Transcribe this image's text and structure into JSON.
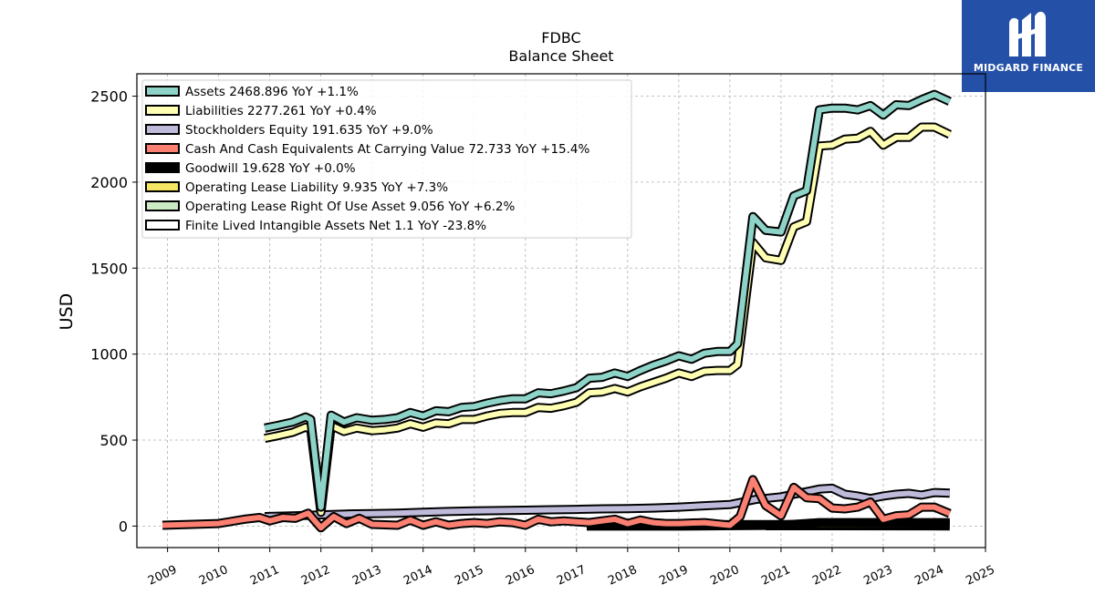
{
  "title": {
    "line1": "FDBC",
    "line2": "Balance  Sheet"
  },
  "logo": {
    "text": "MIDGARD FINANCE",
    "icon": "midgard-logo-icon",
    "color": "#2450a8"
  },
  "chart_data": {
    "type": "line",
    "ylabel": "USD",
    "xlim": [
      2008.4,
      2025.0
    ],
    "ylim": [
      -125,
      2630
    ],
    "yticks": [
      0,
      500,
      1000,
      1500,
      2000,
      2500
    ],
    "xticks": [
      2009,
      2010,
      2011,
      2012,
      2013,
      2014,
      2015,
      2016,
      2017,
      2018,
      2019,
      2020,
      2021,
      2022,
      2023,
      2024,
      2025
    ],
    "grid": true,
    "legend_placement": "top-left",
    "series": [
      {
        "name": "Assets",
        "legend": "Assets  2468.896 YoY +1.1%",
        "color": "#8dd3c7",
        "points": [
          [
            2010.9,
            570
          ],
          [
            2011.15,
            585
          ],
          [
            2011.45,
            605
          ],
          [
            2011.7,
            635
          ],
          [
            2011.8,
            620
          ],
          [
            2012.0,
            110
          ],
          [
            2012.2,
            645
          ],
          [
            2012.45,
            605
          ],
          [
            2012.7,
            630
          ],
          [
            2013.0,
            615
          ],
          [
            2013.25,
            620
          ],
          [
            2013.5,
            630
          ],
          [
            2013.75,
            660
          ],
          [
            2014.0,
            640
          ],
          [
            2014.25,
            670
          ],
          [
            2014.5,
            665
          ],
          [
            2014.75,
            690
          ],
          [
            2015.0,
            695
          ],
          [
            2015.25,
            715
          ],
          [
            2015.5,
            730
          ],
          [
            2015.75,
            740
          ],
          [
            2016.0,
            740
          ],
          [
            2016.25,
            775
          ],
          [
            2016.5,
            770
          ],
          [
            2016.75,
            785
          ],
          [
            2017.0,
            805
          ],
          [
            2017.25,
            860
          ],
          [
            2017.5,
            865
          ],
          [
            2017.75,
            890
          ],
          [
            2018.0,
            870
          ],
          [
            2018.25,
            905
          ],
          [
            2018.5,
            935
          ],
          [
            2018.75,
            960
          ],
          [
            2019.0,
            990
          ],
          [
            2019.25,
            970
          ],
          [
            2019.5,
            1005
          ],
          [
            2019.75,
            1015
          ],
          [
            2020.0,
            1015
          ],
          [
            2020.15,
            1060
          ],
          [
            2020.45,
            1800
          ],
          [
            2020.7,
            1720
          ],
          [
            2021.0,
            1710
          ],
          [
            2021.25,
            1920
          ],
          [
            2021.5,
            1950
          ],
          [
            2021.75,
            2420
          ],
          [
            2022.0,
            2430
          ],
          [
            2022.25,
            2430
          ],
          [
            2022.5,
            2420
          ],
          [
            2022.75,
            2445
          ],
          [
            2023.0,
            2390
          ],
          [
            2023.25,
            2450
          ],
          [
            2023.5,
            2445
          ],
          [
            2023.75,
            2480
          ],
          [
            2024.0,
            2510
          ],
          [
            2024.3,
            2469
          ]
        ]
      },
      {
        "name": "Liabilities",
        "legend": "Liabilities  2277.261 YoY +0.4%",
        "color": "#ffffb3",
        "points": [
          [
            2010.9,
            510
          ],
          [
            2011.15,
            525
          ],
          [
            2011.45,
            545
          ],
          [
            2011.7,
            575
          ],
          [
            2011.8,
            565
          ],
          [
            2012.0,
            80
          ],
          [
            2012.2,
            585
          ],
          [
            2012.45,
            550
          ],
          [
            2012.7,
            570
          ],
          [
            2013.0,
            555
          ],
          [
            2013.25,
            560
          ],
          [
            2013.5,
            570
          ],
          [
            2013.75,
            595
          ],
          [
            2014.0,
            575
          ],
          [
            2014.25,
            600
          ],
          [
            2014.5,
            595
          ],
          [
            2014.75,
            620
          ],
          [
            2015.0,
            620
          ],
          [
            2015.25,
            640
          ],
          [
            2015.5,
            655
          ],
          [
            2015.75,
            660
          ],
          [
            2016.0,
            660
          ],
          [
            2016.25,
            690
          ],
          [
            2016.5,
            685
          ],
          [
            2016.75,
            700
          ],
          [
            2017.0,
            720
          ],
          [
            2017.25,
            775
          ],
          [
            2017.5,
            780
          ],
          [
            2017.75,
            800
          ],
          [
            2018.0,
            780
          ],
          [
            2018.25,
            810
          ],
          [
            2018.5,
            835
          ],
          [
            2018.75,
            860
          ],
          [
            2019.0,
            890
          ],
          [
            2019.25,
            870
          ],
          [
            2019.5,
            900
          ],
          [
            2019.75,
            905
          ],
          [
            2020.0,
            905
          ],
          [
            2020.15,
            940
          ],
          [
            2020.45,
            1650
          ],
          [
            2020.7,
            1560
          ],
          [
            2021.0,
            1545
          ],
          [
            2021.25,
            1740
          ],
          [
            2021.5,
            1770
          ],
          [
            2021.75,
            2210
          ],
          [
            2022.0,
            2215
          ],
          [
            2022.25,
            2250
          ],
          [
            2022.5,
            2255
          ],
          [
            2022.75,
            2295
          ],
          [
            2023.0,
            2215
          ],
          [
            2023.25,
            2260
          ],
          [
            2023.5,
            2260
          ],
          [
            2023.75,
            2320
          ],
          [
            2024.0,
            2320
          ],
          [
            2024.3,
            2277
          ]
        ]
      },
      {
        "name": "Stockholders Equity",
        "legend": "Stockholders Equity  191.635 YoY +9.0%",
        "color": "#bebada",
        "points": [
          [
            2010.9,
            55
          ],
          [
            2011.5,
            60
          ],
          [
            2012.0,
            65
          ],
          [
            2012.5,
            70
          ],
          [
            2013.0,
            72
          ],
          [
            2013.5,
            75
          ],
          [
            2014.0,
            80
          ],
          [
            2014.5,
            85
          ],
          [
            2015.0,
            88
          ],
          [
            2015.5,
            90
          ],
          [
            2016.0,
            92
          ],
          [
            2016.5,
            95
          ],
          [
            2017.0,
            97
          ],
          [
            2017.5,
            100
          ],
          [
            2018.0,
            102
          ],
          [
            2018.5,
            105
          ],
          [
            2019.0,
            110
          ],
          [
            2019.5,
            118
          ],
          [
            2020.0,
            125
          ],
          [
            2020.5,
            155
          ],
          [
            2021.0,
            170
          ],
          [
            2021.5,
            200
          ],
          [
            2021.75,
            215
          ],
          [
            2022.0,
            220
          ],
          [
            2022.25,
            185
          ],
          [
            2022.5,
            175
          ],
          [
            2022.75,
            160
          ],
          [
            2023.0,
            175
          ],
          [
            2023.25,
            185
          ],
          [
            2023.5,
            190
          ],
          [
            2023.75,
            180
          ],
          [
            2024.0,
            195
          ],
          [
            2024.3,
            192
          ]
        ]
      },
      {
        "name": "Cash And Cash Equivalents At Carrying Value",
        "legend": "Cash And Cash Equivalents At Carrying Value  72.733 YoY +15.4%",
        "color": "#fb8072",
        "points": [
          [
            2008.9,
            5
          ],
          [
            2009.5,
            10
          ],
          [
            2010.0,
            15
          ],
          [
            2010.5,
            40
          ],
          [
            2010.8,
            50
          ],
          [
            2011.0,
            30
          ],
          [
            2011.25,
            50
          ],
          [
            2011.5,
            45
          ],
          [
            2011.75,
            75
          ],
          [
            2012.0,
            -10
          ],
          [
            2012.25,
            55
          ],
          [
            2012.5,
            15
          ],
          [
            2012.75,
            45
          ],
          [
            2013.0,
            10
          ],
          [
            2013.5,
            5
          ],
          [
            2013.75,
            35
          ],
          [
            2014.0,
            5
          ],
          [
            2014.25,
            25
          ],
          [
            2014.5,
            5
          ],
          [
            2014.75,
            15
          ],
          [
            2015.0,
            20
          ],
          [
            2015.25,
            15
          ],
          [
            2015.5,
            25
          ],
          [
            2015.75,
            20
          ],
          [
            2016.0,
            5
          ],
          [
            2016.25,
            40
          ],
          [
            2016.5,
            25
          ],
          [
            2016.75,
            30
          ],
          [
            2017.0,
            25
          ],
          [
            2017.25,
            20
          ],
          [
            2017.5,
            30
          ],
          [
            2017.75,
            40
          ],
          [
            2018.0,
            15
          ],
          [
            2018.25,
            35
          ],
          [
            2018.5,
            20
          ],
          [
            2018.75,
            15
          ],
          [
            2019.0,
            15
          ],
          [
            2019.5,
            20
          ],
          [
            2020.0,
            5
          ],
          [
            2020.2,
            55
          ],
          [
            2020.45,
            270
          ],
          [
            2020.7,
            120
          ],
          [
            2021.0,
            60
          ],
          [
            2021.25,
            225
          ],
          [
            2021.5,
            165
          ],
          [
            2021.75,
            160
          ],
          [
            2022.0,
            105
          ],
          [
            2022.25,
            100
          ],
          [
            2022.5,
            110
          ],
          [
            2022.75,
            140
          ],
          [
            2023.0,
            40
          ],
          [
            2023.25,
            60
          ],
          [
            2023.5,
            65
          ],
          [
            2023.75,
            110
          ],
          [
            2024.0,
            110
          ],
          [
            2024.3,
            73
          ]
        ]
      },
      {
        "name": "Goodwill",
        "legend": "Goodwill  19.628 YoY +0.0%",
        "color": "#000000",
        "points": [
          [
            2017.2,
            0
          ],
          [
            2019.0,
            0
          ],
          [
            2021.0,
            5
          ],
          [
            2021.75,
            20
          ],
          [
            2024.3,
            20
          ]
        ]
      },
      {
        "name": "Operating Lease Liability",
        "legend": "Operating Lease Liability  9.935 YoY +7.3%",
        "color": "#f5e663",
        "points": [
          [
            2019.0,
            8
          ],
          [
            2021.0,
            9
          ],
          [
            2024.3,
            10
          ]
        ]
      },
      {
        "name": "Operating Lease Right Of Use Asset",
        "legend": "Operating Lease Right Of Use Asset  9.056 YoY +6.2%",
        "color": "#ccebc5",
        "points": [
          [
            2019.0,
            7
          ],
          [
            2020.75,
            5
          ]
        ]
      },
      {
        "name": "Finite Lived Intangible Assets Net",
        "legend": "Finite Lived Intangible Assets Net  1.1 YoY -23.8%",
        "color": "#ffffff",
        "points": [
          [
            2020.7,
            2
          ],
          [
            2024.3,
            1
          ]
        ]
      }
    ]
  }
}
